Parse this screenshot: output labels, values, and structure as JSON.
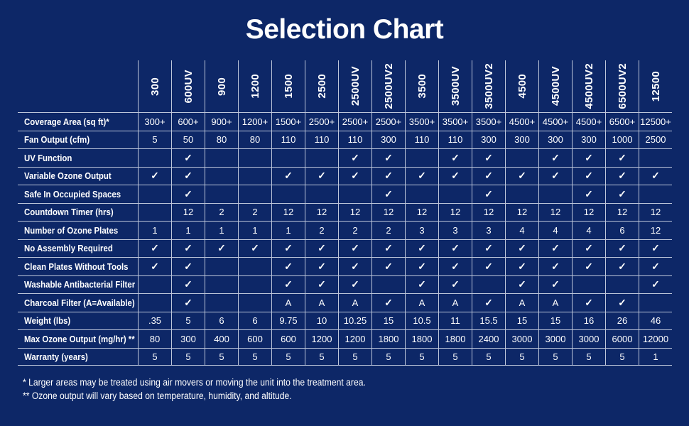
{
  "title": "Selection Chart",
  "colors": {
    "background": "#0d2767",
    "border": "#bdc6da",
    "text": "#ffffff"
  },
  "check_symbol": "✓",
  "chart_data": {
    "type": "table",
    "title": "Selection Chart",
    "columns": [
      "300",
      "600UV",
      "900",
      "1200",
      "1500",
      "2500",
      "2500UV",
      "2500UV2",
      "3500",
      "3500UV",
      "3500UV2",
      "4500",
      "4500UV",
      "4500UV2",
      "6500UV2",
      "12500"
    ],
    "rows": [
      {
        "label": "Coverage Area (sq ft)*",
        "values": [
          "300+",
          "600+",
          "900+",
          "1200+",
          "1500+",
          "2500+",
          "2500+",
          "2500+",
          "3500+",
          "3500+",
          "3500+",
          "4500+",
          "4500+",
          "4500+",
          "6500+",
          "12500+"
        ]
      },
      {
        "label": "Fan Output (cfm)",
        "values": [
          "5",
          "50",
          "80",
          "80",
          "110",
          "110",
          "110",
          "300",
          "110",
          "110",
          "300",
          "300",
          "300",
          "300",
          "1000",
          "2500"
        ]
      },
      {
        "label": "UV Function",
        "values": [
          "",
          "✓",
          "",
          "",
          "",
          "",
          "✓",
          "✓",
          "",
          "✓",
          "✓",
          "",
          "✓",
          "✓",
          "✓",
          ""
        ]
      },
      {
        "label": "Variable Ozone Output",
        "values": [
          "✓",
          "✓",
          "",
          "",
          "✓",
          "✓",
          "✓",
          "✓",
          "✓",
          "✓",
          "✓",
          "✓",
          "✓",
          "✓",
          "✓",
          "✓"
        ]
      },
      {
        "label": "Safe In Occupied Spaces",
        "values": [
          "",
          "✓",
          "",
          "",
          "",
          "",
          "",
          "✓",
          "",
          "",
          "✓",
          "",
          "",
          "✓",
          "✓",
          ""
        ]
      },
      {
        "label": "Countdown Timer (hrs)",
        "values": [
          "",
          "12",
          "2",
          "2",
          "12",
          "12",
          "12",
          "12",
          "12",
          "12",
          "12",
          "12",
          "12",
          "12",
          "12",
          "12"
        ]
      },
      {
        "label": "Number of Ozone Plates",
        "values": [
          "1",
          "1",
          "1",
          "1",
          "1",
          "2",
          "2",
          "2",
          "3",
          "3",
          "3",
          "4",
          "4",
          "4",
          "6",
          "12"
        ]
      },
      {
        "label": "No Assembly Required",
        "values": [
          "✓",
          "✓",
          "✓",
          "✓",
          "✓",
          "✓",
          "✓",
          "✓",
          "✓",
          "✓",
          "✓",
          "✓",
          "✓",
          "✓",
          "✓",
          "✓"
        ]
      },
      {
        "label": "Clean Plates Without Tools",
        "values": [
          "✓",
          "✓",
          "",
          "",
          "✓",
          "✓",
          "✓",
          "✓",
          "✓",
          "✓",
          "✓",
          "✓",
          "✓",
          "✓",
          "✓",
          "✓"
        ]
      },
      {
        "label": "Washable Antibacterial Filter",
        "values": [
          "",
          "✓",
          "",
          "",
          "✓",
          "✓",
          "✓",
          "",
          "✓",
          "✓",
          "",
          "✓",
          "✓",
          "",
          "",
          "✓"
        ]
      },
      {
        "label": "Charcoal Filter  (A=Available)",
        "values": [
          "",
          "✓",
          "",
          "",
          "A",
          "A",
          "A",
          "✓",
          "A",
          "A",
          "✓",
          "A",
          "A",
          "✓",
          "✓",
          ""
        ]
      },
      {
        "label": "Weight (lbs)",
        "values": [
          ".35",
          "5",
          "6",
          "6",
          "9.75",
          "10",
          "10.25",
          "15",
          "10.5",
          "11",
          "15.5",
          "15",
          "15",
          "16",
          "26",
          "46"
        ]
      },
      {
        "label": "Max Ozone Output (mg/hr) **",
        "values": [
          "80",
          "300",
          "400",
          "600",
          "600",
          "1200",
          "1200",
          "1800",
          "1800",
          "1800",
          "2400",
          "3000",
          "3000",
          "3000",
          "6000",
          "12000"
        ]
      },
      {
        "label": "Warranty (years)",
        "values": [
          "5",
          "5",
          "5",
          "5",
          "5",
          "5",
          "5",
          "5",
          "5",
          "5",
          "5",
          "5",
          "5",
          "5",
          "5",
          "1"
        ]
      }
    ]
  },
  "footnotes": [
    "* Larger areas may be treated using air movers or moving the unit into the treatment area.",
    "** Ozone output will vary based on temperature, humidity, and altitude."
  ]
}
